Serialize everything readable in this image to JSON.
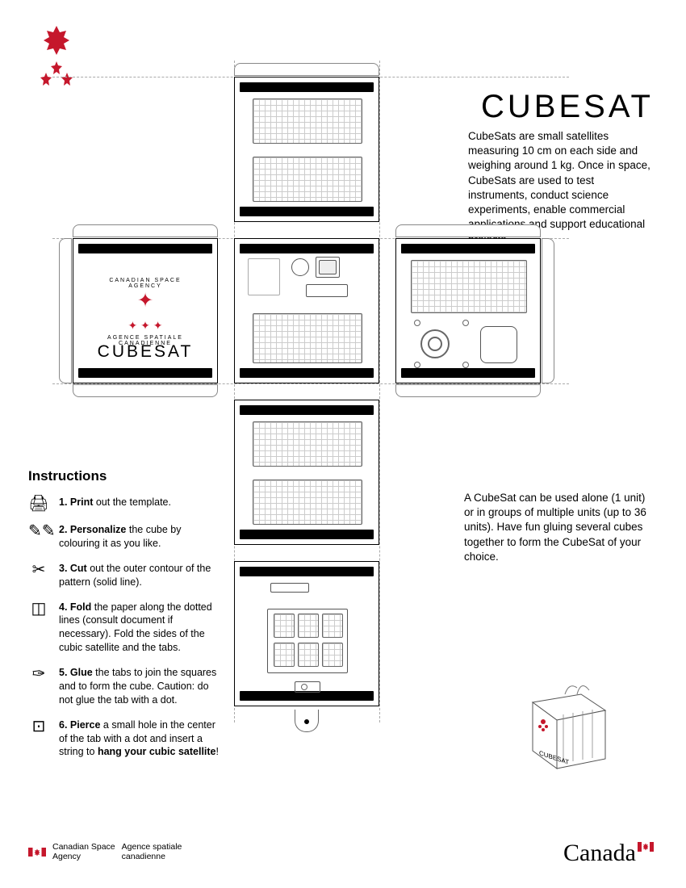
{
  "colors": {
    "accent": "#c5172c",
    "line": "#000000",
    "grid": "#cccccc"
  },
  "title": "CUBESAT",
  "intro": "CubeSats are small satellites measuring 10 cm on each side and weighing around 1 kg. Once in space, CubeSats are used to test instruments, conduct science experiments, enable commercial applications and support educational projects.",
  "para2": "A CubeSat can be used alone (1 unit) or in groups of multiple units (up to 36 units). Have fun gluing several cubes together to form the CubeSat of your choice.",
  "face_left": {
    "arc_top": "CANADIAN SPACE AGENCY",
    "arc_bot": "AGENCE SPATIALE CANADIENNE",
    "title": "CUBESAT"
  },
  "instructions": {
    "heading": "Instructions",
    "items": [
      {
        "icon": "printer-icon",
        "glyph": "🖨",
        "num": "1.",
        "bold": "Print",
        "text": " out the template."
      },
      {
        "icon": "pencils-icon",
        "glyph": "✎✎",
        "num": "2.",
        "bold": "Personalize",
        "text": " the cube by colouring it as you like."
      },
      {
        "icon": "scissors-icon",
        "glyph": "✂",
        "num": "3.",
        "bold": "Cut",
        "text": " out the outer contour of the pattern (solid line)."
      },
      {
        "icon": "fold-icon",
        "glyph": "◫",
        "num": "4.",
        "bold": "Fold",
        "text": " the paper along the dotted lines (consult document if necessary). Fold the sides of the cubic satellite and the tabs."
      },
      {
        "icon": "glue-icon",
        "glyph": "✑",
        "num": "5.",
        "bold": "Glue",
        "text": " the tabs to join the squares and to form the cube. Caution: do not glue the tab with a dot."
      },
      {
        "icon": "pierce-icon",
        "glyph": "⊡",
        "num": "6.",
        "bold": "Pierce",
        "text": " a small hole in the center of the tab with a dot and insert a string to ",
        "bold2": "hang your cubic satellite",
        "tail": "!"
      }
    ]
  },
  "footer": {
    "en1": "Canadian Space",
    "en2": "Agency",
    "fr1": "Agence spatiale",
    "fr2": "canadienne",
    "wordmark": "Canada"
  }
}
